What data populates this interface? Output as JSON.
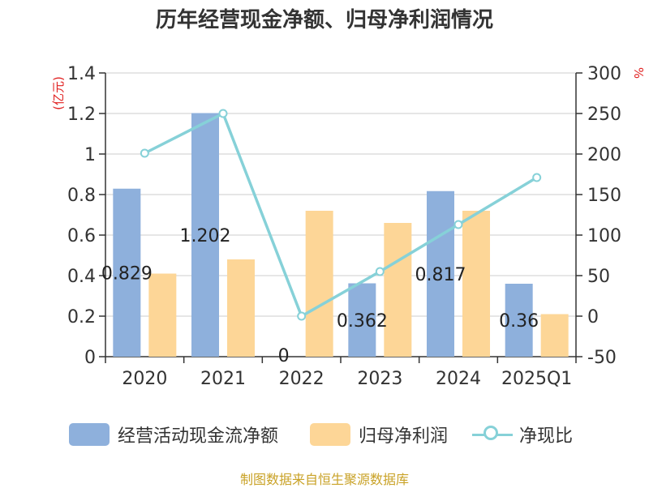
{
  "title": "历年经营现金净额、归母净利润情况",
  "source": "制图数据来自恒生聚源数据库",
  "colors": {
    "cash_bar": "#8eb0dc",
    "profit_bar": "#fdd697",
    "ratio_line": "#86d1d8",
    "unit": "#e02020",
    "axis": "#333333",
    "grid": "#cccccc"
  },
  "legend": [
    {
      "label": "经营活动现金流净额",
      "kind": "bar",
      "color": "#8eb0dc"
    },
    {
      "label": "归母净利润",
      "kind": "bar",
      "color": "#fdd697"
    },
    {
      "label": "净现比",
      "kind": "line",
      "color": "#86d1d8"
    }
  ],
  "chart_data": {
    "type": "bar",
    "title": "历年经营现金净额、归母净利润情况",
    "categories": [
      "2020",
      "2021",
      "2022",
      "2023",
      "2024",
      "2025Q1"
    ],
    "left_axis": {
      "unit": "(亿元)",
      "ylim": [
        0,
        1.4
      ],
      "ticks": [
        "0",
        "0.2",
        "0.4",
        "0.6",
        "0.8",
        "1",
        "1.2",
        "1.4"
      ]
    },
    "right_axis": {
      "unit": "%",
      "ylim": [
        -50,
        300
      ],
      "ticks": [
        "-50",
        "0",
        "50",
        "100",
        "150",
        "200",
        "250",
        "300"
      ]
    },
    "grid": true,
    "legend_position": "bottom",
    "series": [
      {
        "name": "经营活动现金流净额",
        "type": "bar",
        "axis": "left",
        "values": [
          0.829,
          1.202,
          0,
          0.362,
          0.817,
          0.36
        ],
        "labels": [
          "0.829",
          "1.202",
          "0",
          "0.362",
          "0.817",
          "0.36"
        ]
      },
      {
        "name": "归母净利润",
        "type": "bar",
        "axis": "left",
        "values": [
          0.41,
          0.48,
          0.72,
          0.66,
          0.72,
          0.21
        ]
      },
      {
        "name": "净现比",
        "type": "line",
        "axis": "right",
        "values": [
          201,
          250,
          0,
          55,
          113,
          171
        ]
      }
    ]
  }
}
